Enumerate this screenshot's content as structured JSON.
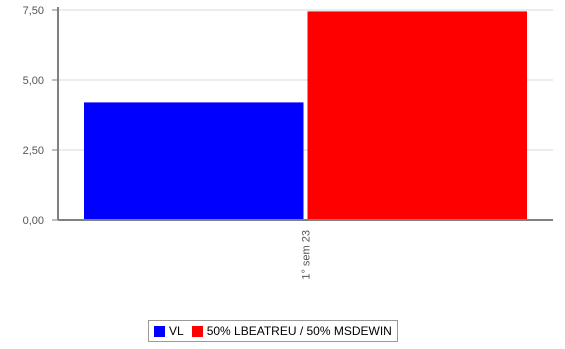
{
  "colors": {
    "series_1": "#0000ff",
    "series_2": "#ff0000",
    "axis": "#808080",
    "grid": "#d9d9d9",
    "text": "#555555"
  },
  "chart_data": {
    "type": "bar",
    "categories": [
      "1° sem   23"
    ],
    "series": [
      {
        "name": "VL",
        "values": [
          4.2
        ]
      },
      {
        "name": "50% LBEATREU / 50% MSDEWIN",
        "values": [
          7.45
        ]
      }
    ],
    "y_ticks": [
      "0,00",
      "2,50",
      "5,00",
      "7,50"
    ],
    "y_tick_values": [
      0,
      2.5,
      5,
      7.5
    ],
    "ylim": [
      0,
      7.5
    ],
    "grid": true,
    "legend_position": "bottom-center",
    "title": "",
    "xlabel": "",
    "ylabel": ""
  },
  "legend": {
    "items": [
      {
        "label": "VL"
      },
      {
        "label": "50% LBEATREU / 50% MSDEWIN"
      }
    ]
  }
}
